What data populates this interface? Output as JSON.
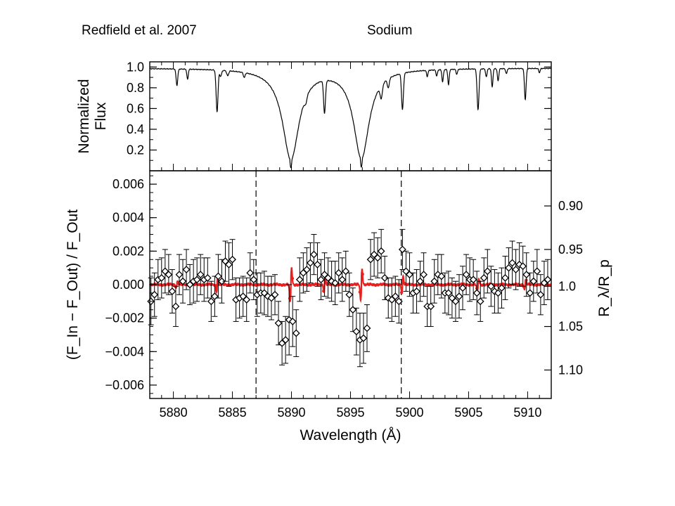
{
  "header": {
    "reference": "Redfield et al. 2007",
    "topic": "Sodium"
  },
  "chart_data": [
    {
      "type": "line",
      "panel": "top",
      "ylabel_lines": [
        "Normalized",
        "Flux"
      ],
      "xlim": [
        5878,
        5912
      ],
      "ylim": [
        0.0,
        1.05
      ],
      "y_ticks": [
        "0.2",
        "0.4",
        "0.6",
        "0.8",
        "1.0"
      ],
      "y_tick_values": [
        0.2,
        0.4,
        0.6,
        0.8,
        1.0
      ],
      "continuum": 0.99,
      "absorption_lines": [
        {
          "center": 5889.95,
          "depth": 0.97,
          "core_width": 0.22,
          "wing_width": 0.85
        },
        {
          "center": 5895.92,
          "depth": 0.96,
          "core_width": 0.22,
          "wing_width": 0.8
        },
        {
          "center": 5883.7,
          "depth": 0.41,
          "core_width": 0.08,
          "wing_width": 0
        },
        {
          "center": 5892.8,
          "depth": 0.36,
          "core_width": 0.08,
          "wing_width": 0
        },
        {
          "center": 5899.4,
          "depth": 0.37,
          "core_width": 0.08,
          "wing_width": 0
        },
        {
          "center": 5905.8,
          "depth": 0.4,
          "core_width": 0.08,
          "wing_width": 0
        },
        {
          "center": 5909.8,
          "depth": 0.3,
          "core_width": 0.07,
          "wing_width": 0
        },
        {
          "center": 5880.3,
          "depth": 0.16,
          "core_width": 0.07,
          "wing_width": 0
        },
        {
          "center": 5881.2,
          "depth": 0.1,
          "core_width": 0.06,
          "wing_width": 0
        },
        {
          "center": 5884.0,
          "depth": 0.06,
          "core_width": 0.08,
          "wing_width": 0
        },
        {
          "center": 5884.6,
          "depth": 0.05,
          "core_width": 0.08,
          "wing_width": 0
        },
        {
          "center": 5886.0,
          "depth": 0.05,
          "core_width": 0.07,
          "wing_width": 0
        },
        {
          "center": 5891.2,
          "depth": 0.08,
          "core_width": 0.1,
          "wing_width": 0
        },
        {
          "center": 5897.6,
          "depth": 0.15,
          "core_width": 0.1,
          "wing_width": 0
        },
        {
          "center": 5898.2,
          "depth": 0.1,
          "core_width": 0.08,
          "wing_width": 0
        },
        {
          "center": 5901.5,
          "depth": 0.06,
          "core_width": 0.06,
          "wing_width": 0
        },
        {
          "center": 5902.3,
          "depth": 0.06,
          "core_width": 0.06,
          "wing_width": 0
        },
        {
          "center": 5902.8,
          "depth": 0.12,
          "core_width": 0.06,
          "wing_width": 0
        },
        {
          "center": 5903.3,
          "depth": 0.15,
          "core_width": 0.06,
          "wing_width": 0
        },
        {
          "center": 5904.0,
          "depth": 0.05,
          "core_width": 0.06,
          "wing_width": 0
        },
        {
          "center": 5906.5,
          "depth": 0.08,
          "core_width": 0.06,
          "wing_width": 0
        },
        {
          "center": 5907.0,
          "depth": 0.18,
          "core_width": 0.06,
          "wing_width": 0
        },
        {
          "center": 5907.5,
          "depth": 0.12,
          "core_width": 0.06,
          "wing_width": 0
        },
        {
          "center": 5908.2,
          "depth": 0.05,
          "core_width": 0.06,
          "wing_width": 0
        },
        {
          "center": 5911.0,
          "depth": 0.04,
          "core_width": 0.06,
          "wing_width": 0
        }
      ]
    },
    {
      "type": "scatter",
      "panel": "bottom",
      "xlabel": "Wavelength (Å)",
      "ylabel": "(F_In − F_Out) / F_Out",
      "y2label": "R_λ/R_p",
      "xlim": [
        5878,
        5912
      ],
      "ylim": [
        -0.0068,
        0.0068
      ],
      "x_ticks": [
        "5880",
        "5885",
        "5890",
        "5895",
        "5900",
        "5905",
        "5910"
      ],
      "x_tick_values": [
        5880,
        5885,
        5890,
        5895,
        5900,
        5905,
        5910
      ],
      "y_ticks": [
        "0.006",
        "0.004",
        "0.002",
        "0.000",
        "−0.002",
        "−0.004",
        "−0.006"
      ],
      "y_tick_values": [
        0.006,
        0.004,
        0.002,
        0.0,
        -0.002,
        -0.004,
        -0.006
      ],
      "y2_ticks": [
        "0.90",
        "0.95",
        "1.0",
        "1.05",
        "1.10"
      ],
      "y2_tick_values": [
        0.0047,
        0.0021,
        -0.0001,
        -0.0025,
        -0.0051
      ],
      "dashed_lines_x": [
        5887.0,
        5899.3
      ],
      "colors": {
        "data": "#000000",
        "model": "#e8201f"
      },
      "points": {
        "x": [
          5878.1,
          5878.4,
          5878.7,
          5879.0,
          5879.3,
          5879.6,
          5879.9,
          5880.2,
          5880.5,
          5880.8,
          5881.1,
          5881.4,
          5881.7,
          5882.0,
          5882.3,
          5882.6,
          5882.9,
          5883.2,
          5883.5,
          5883.8,
          5884.1,
          5884.4,
          5884.7,
          5885.0,
          5885.3,
          5885.6,
          5885.9,
          5886.2,
          5886.5,
          5886.8,
          5887.1,
          5887.4,
          5887.7,
          5888.0,
          5888.3,
          5888.6,
          5888.9,
          5889.2,
          5889.5,
          5889.8,
          5890.1,
          5890.4,
          5890.7,
          5891.0,
          5891.3,
          5891.6,
          5891.9,
          5892.2,
          5892.5,
          5892.8,
          5893.1,
          5893.4,
          5893.7,
          5894.0,
          5894.3,
          5894.6,
          5894.9,
          5895.2,
          5895.5,
          5895.8,
          5896.1,
          5896.4,
          5896.7,
          5897.0,
          5897.3,
          5897.6,
          5897.9,
          5898.2,
          5898.5,
          5898.8,
          5899.1,
          5899.4,
          5899.7,
          5900.0,
          5900.3,
          5900.6,
          5900.9,
          5901.2,
          5901.5,
          5901.8,
          5902.1,
          5902.4,
          5902.7,
          5903.0,
          5903.3,
          5903.6,
          5903.9,
          5904.2,
          5904.5,
          5904.8,
          5905.1,
          5905.4,
          5905.7,
          5906.0,
          5906.3,
          5906.6,
          5906.9,
          5907.2,
          5907.5,
          5907.8,
          5908.1,
          5908.4,
          5908.7,
          5909.0,
          5909.3,
          5909.6,
          5909.9,
          5910.2,
          5910.5,
          5910.8,
          5911.1,
          5911.4,
          5911.7
        ],
        "y": [
          -0.001,
          -0.0006,
          0.0003,
          0.0004,
          0.0008,
          0.0006,
          -0.0004,
          -0.0013,
          0.0006,
          0.0002,
          0.0009,
          0.0,
          0.0002,
          0.0003,
          0.0006,
          0.0003,
          0.0004,
          -0.001,
          -0.0007,
          0.0005,
          0.0002,
          0.0014,
          0.0012,
          0.0015,
          -0.0009,
          -0.0008,
          -0.0007,
          -0.0009,
          0.0007,
          0.0003,
          -0.0006,
          -0.0005,
          -0.0005,
          -0.0007,
          -0.0008,
          -0.0006,
          -0.0023,
          -0.0035,
          -0.0033,
          -0.0021,
          -0.0022,
          -0.0029,
          0.0003,
          0.0007,
          0.0009,
          0.0013,
          0.0018,
          0.0012,
          0.0003,
          0.0006,
          0.0004,
          0.0002,
          0.0001,
          0.0007,
          0.0003,
          0.0008,
          -0.0006,
          -0.0015,
          -0.0028,
          -0.0033,
          -0.0032,
          -0.0026,
          0.0015,
          0.0018,
          0.0016,
          0.002,
          0.0004,
          -0.0008,
          -0.0009,
          -0.0007,
          -0.001,
          0.0021,
          0.0008,
          0.0006,
          -0.0005,
          -0.0004,
          0.0002,
          0.0006,
          -0.0013,
          -0.0013,
          0.0002,
          0.0006,
          0.0005,
          -0.0005,
          -0.0005,
          -0.0008,
          -0.001,
          -0.0007,
          -0.0002,
          0.0006,
          0.0003,
          0.0003,
          -0.0005,
          -0.001,
          0.0004,
          0.0008,
          -0.0001,
          -0.0004,
          -0.0005,
          -0.0002,
          0.0004,
          0.001,
          0.0013,
          0.0009,
          0.0012,
          0.0011,
          0.0006,
          -0.0005,
          0.0002,
          0.0008,
          -0.0006,
          0.0001,
          0.0003
        ],
        "err": [
          0.0014,
          0.0013,
          0.0012,
          0.0012,
          0.0013,
          0.0012,
          0.0013,
          0.0012,
          0.0012,
          0.0013,
          0.0012,
          0.0012,
          0.0013,
          0.0013,
          0.0012,
          0.0013,
          0.0012,
          0.0012,
          0.0012,
          0.0013,
          0.0013,
          0.0012,
          0.0013,
          0.0012,
          0.0013,
          0.0012,
          0.0012,
          0.0013,
          0.0012,
          0.0012,
          0.0013,
          0.0012,
          0.0013,
          0.0012,
          0.0013,
          0.0012,
          0.0013,
          0.0013,
          0.0014,
          0.0021,
          0.0015,
          0.0014,
          0.0013,
          0.0012,
          0.0013,
          0.0012,
          0.0012,
          0.0013,
          0.0012,
          0.0013,
          0.0012,
          0.0012,
          0.0013,
          0.0012,
          0.0013,
          0.0012,
          0.0013,
          0.0013,
          0.0014,
          0.0016,
          0.0015,
          0.0014,
          0.0012,
          0.0013,
          0.0012,
          0.0013,
          0.0013,
          0.0012,
          0.0013,
          0.0012,
          0.0013,
          0.0012,
          0.0012,
          0.0013,
          0.0012,
          0.0013,
          0.0012,
          0.0013,
          0.0012,
          0.0012,
          0.0013,
          0.0012,
          0.0013,
          0.0012,
          0.0013,
          0.0012,
          0.0012,
          0.0013,
          0.0013,
          0.0012,
          0.0013,
          0.0012,
          0.0013,
          0.0012,
          0.0012,
          0.0013,
          0.0012,
          0.0013,
          0.0012,
          0.0012,
          0.0013,
          0.0012,
          0.0013,
          0.0012,
          0.0013,
          0.0012,
          0.0013,
          0.0012,
          0.0012,
          0.0013,
          0.0012,
          0.0013,
          0.0012
        ]
      },
      "model_features": [
        {
          "center": 5889.95,
          "amplitude": 0.0011
        },
        {
          "center": 5895.92,
          "amplitude": 0.001
        },
        {
          "center": 5883.7,
          "amplitude": 0.0005
        },
        {
          "center": 5892.8,
          "amplitude": 0.0004
        },
        {
          "center": 5899.4,
          "amplitude": 0.0005
        },
        {
          "center": 5905.8,
          "amplitude": 0.0004
        },
        {
          "center": 5909.8,
          "amplitude": 0.0003
        },
        {
          "center": 5880.3,
          "amplitude": 0.0002
        }
      ]
    }
  ]
}
